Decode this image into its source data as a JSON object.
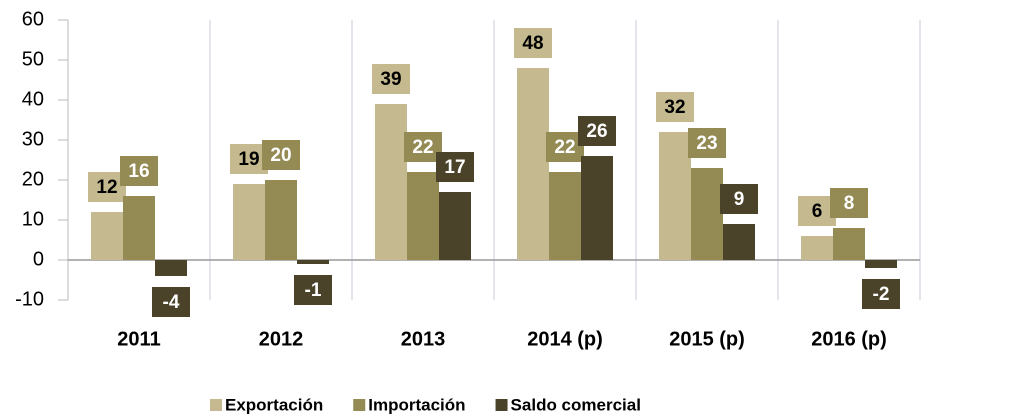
{
  "chart_data": {
    "type": "bar",
    "categories": [
      "2011",
      "2012",
      "2013",
      "2014 (p)",
      "2015 (p)",
      "2016 (p)"
    ],
    "series": [
      {
        "name": "Exportación",
        "color": "#c4b98f",
        "values": [
          12,
          19,
          39,
          48,
          32,
          6
        ]
      },
      {
        "name": "Importación",
        "color": "#948a54",
        "values": [
          16,
          20,
          22,
          22,
          23,
          8
        ]
      },
      {
        "name": "Saldo comercial",
        "color": "#4a4229",
        "values": [
          -4,
          -1,
          17,
          26,
          9,
          -2
        ]
      }
    ],
    "ylim": [
      -10,
      60
    ],
    "yticks": [
      -10,
      0,
      10,
      20,
      30,
      40,
      50,
      60
    ],
    "legend": "bottom"
  }
}
